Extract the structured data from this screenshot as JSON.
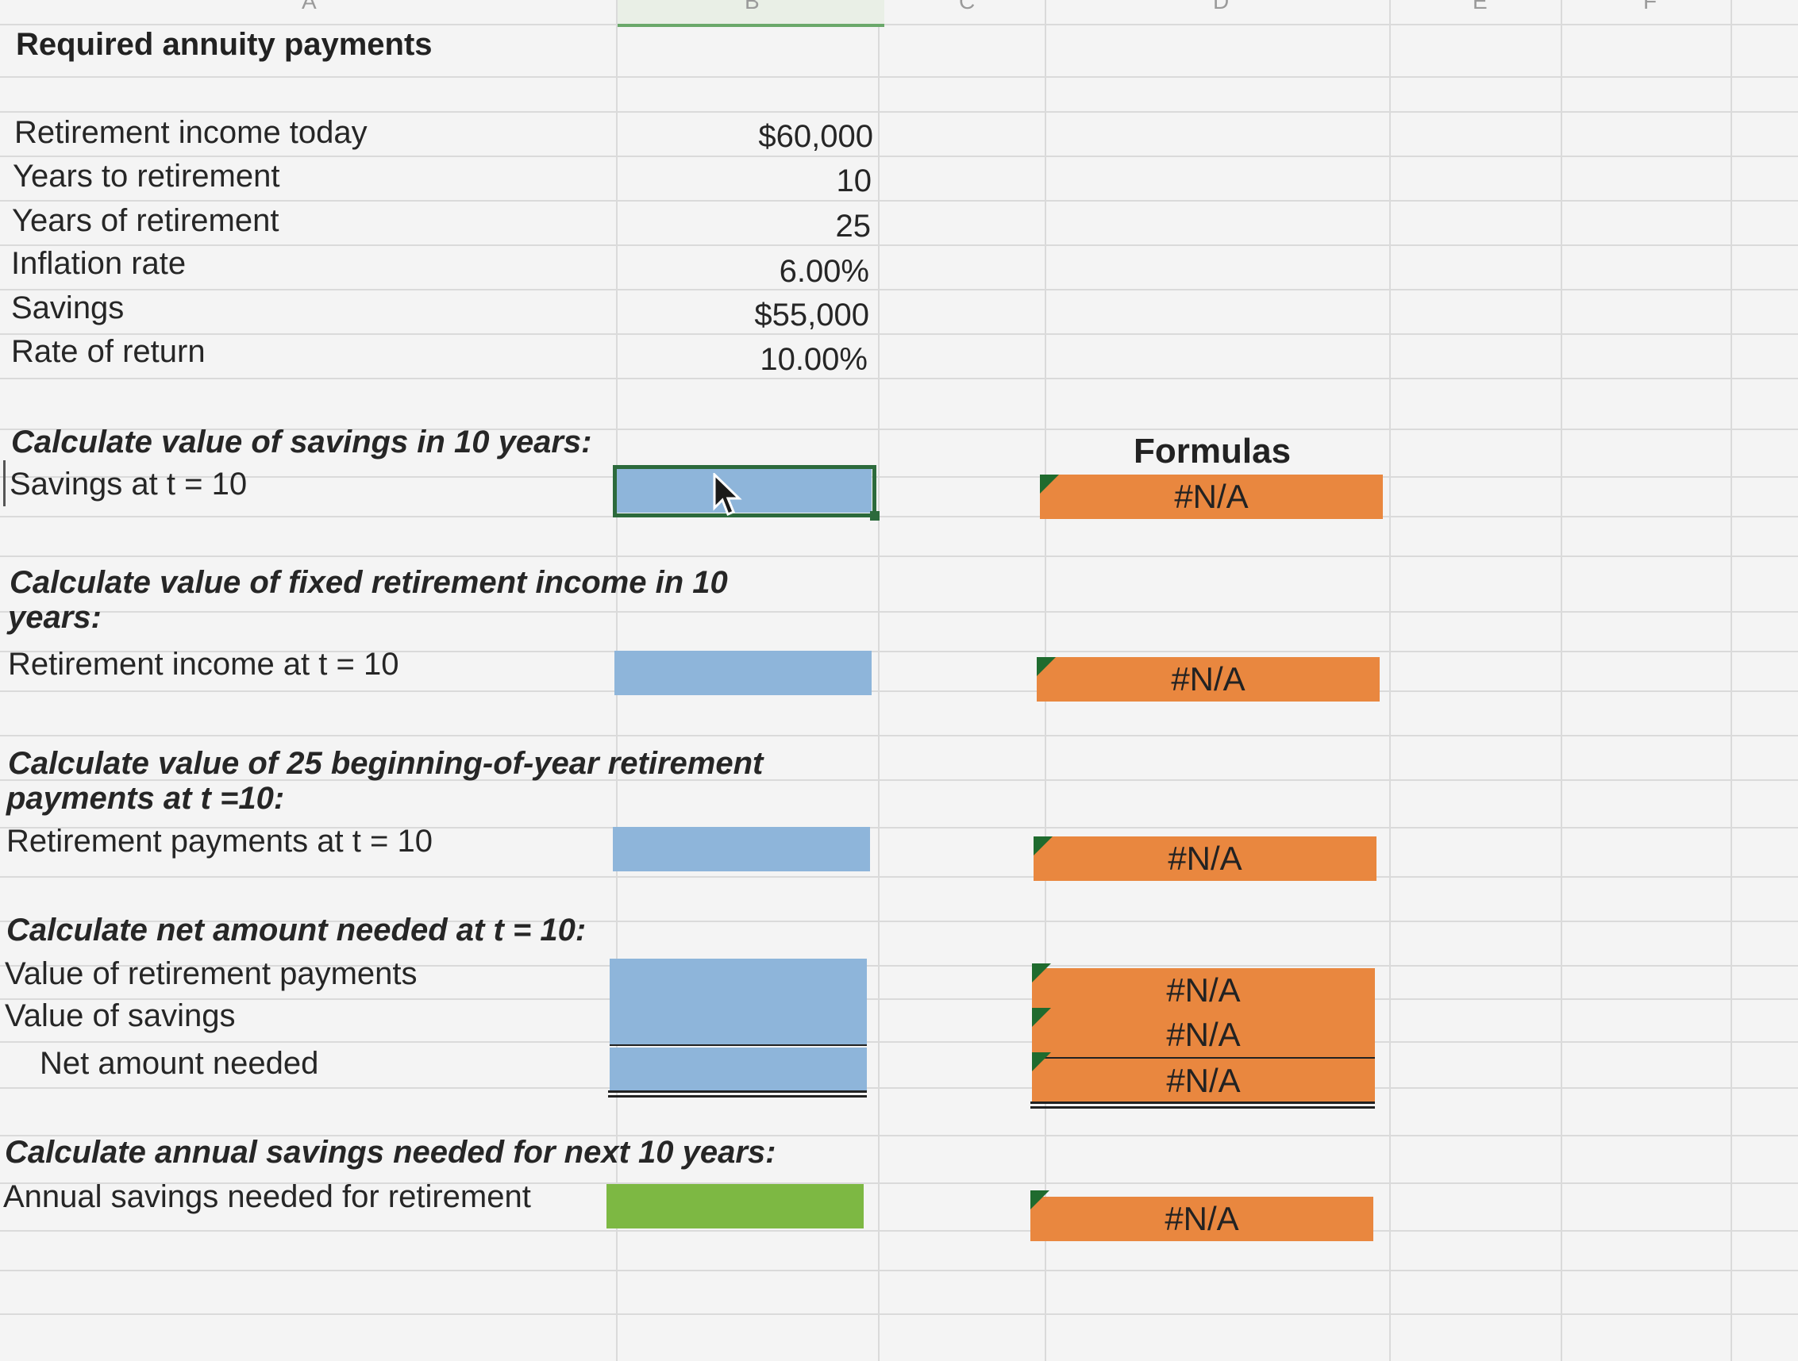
{
  "columns": {
    "a": "A",
    "b": "B",
    "c": "C",
    "d": "D",
    "e": "E",
    "f": "F"
  },
  "title": "Required annuity payments",
  "inputs": [
    {
      "label": "Retirement income today",
      "value": "$60,000"
    },
    {
      "label": "Years to retirement",
      "value": "10"
    },
    {
      "label": "Years of retirement",
      "value": "25"
    },
    {
      "label": "Inflation rate",
      "value": "6.00%"
    },
    {
      "label": "Savings",
      "value": "$55,000"
    },
    {
      "label": "Rate of return",
      "value": "10.00%"
    }
  ],
  "sections": {
    "savings": {
      "heading": "Calculate value of savings in 10 years:",
      "label": "Savings at t = 10",
      "formula": "#N/A"
    },
    "income": {
      "heading_line1": "Calculate value of fixed retirement income in 10",
      "heading_line2": "years:",
      "label": "Retirement income at t = 10",
      "formula": "#N/A"
    },
    "payments": {
      "heading_line1": "Calculate value of 25 beginning-of-year retirement",
      "heading_line2": "payments at t =10:",
      "label": "Retirement payments at t = 10",
      "formula": "#N/A"
    },
    "net": {
      "heading": "Calculate net amount needed at t = 10:",
      "rows": [
        {
          "label": "Value of retirement payments",
          "formula": "#N/A"
        },
        {
          "label": "Value of savings",
          "formula": "#N/A"
        },
        {
          "label": "Net amount needed",
          "formula": "#N/A"
        }
      ]
    },
    "annual": {
      "heading": "Calculate annual savings needed for next 10 years:",
      "label": "Annual savings needed for retirement",
      "formula": "#N/A"
    }
  },
  "formulas_header": "Formulas",
  "colors": {
    "input_cell": "#8eb5da",
    "answer_cell": "#7db843",
    "formula_cell": "#e9873f",
    "selection": "#2c6a3c"
  }
}
